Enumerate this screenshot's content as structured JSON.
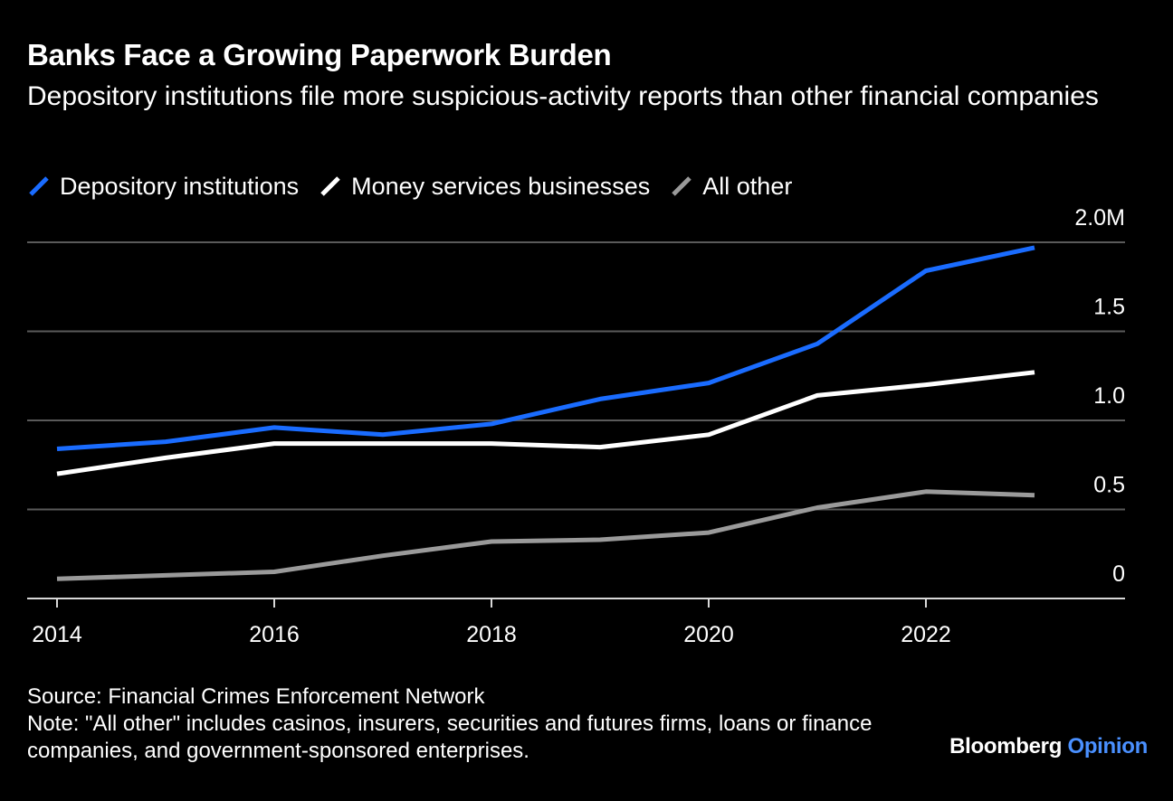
{
  "header": {
    "title": "Banks Face a Growing Paperwork Burden",
    "subtitle": "Depository institutions file more suspicious-activity reports than other financial companies"
  },
  "chart_data": {
    "type": "line",
    "x": [
      2014,
      2015,
      2016,
      2017,
      2018,
      2019,
      2020,
      2021,
      2022,
      2023
    ],
    "x_ticks": [
      "2014",
      "2016",
      "2018",
      "2020",
      "2022"
    ],
    "y_ticks": [
      "0",
      "0.5",
      "1.0",
      "1.5",
      "2.0M"
    ],
    "ylim": [
      0,
      2.0
    ],
    "xlim": [
      2014,
      2023.8
    ],
    "legend_position": "top-left",
    "grid": true,
    "y_axis_side": "right",
    "series": [
      {
        "name": "Depository institutions",
        "color": "#1a6cff",
        "values": [
          0.84,
          0.88,
          0.96,
          0.92,
          0.98,
          1.12,
          1.21,
          1.43,
          1.84,
          1.97
        ]
      },
      {
        "name": "Money services businesses",
        "color": "#ffffff",
        "values": [
          0.7,
          0.79,
          0.87,
          0.87,
          0.87,
          0.85,
          0.92,
          1.14,
          1.2,
          1.27
        ]
      },
      {
        "name": "All other",
        "color": "#9a9a9a",
        "values": [
          0.11,
          0.13,
          0.15,
          0.24,
          0.32,
          0.33,
          0.37,
          0.51,
          0.6,
          0.58
        ]
      }
    ]
  },
  "footer": {
    "source": "Source: Financial Crimes Enforcement Network",
    "note": "Note: \"All other\" includes casinos, insurers, securities and futures firms, loans or finance companies, and government-sponsored enterprises."
  },
  "brand": {
    "name": "Bloomberg",
    "section": "Opinion"
  }
}
